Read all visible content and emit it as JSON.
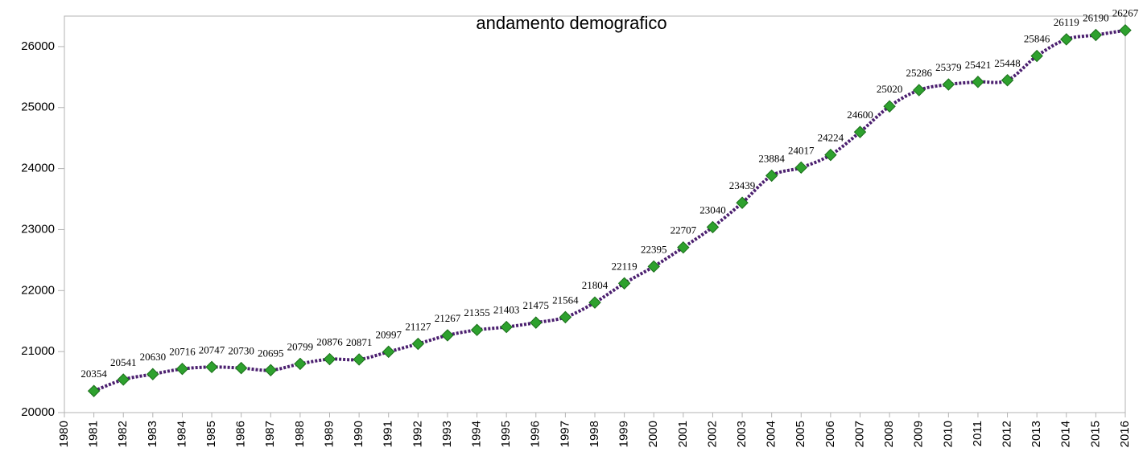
{
  "chart_data": {
    "type": "line",
    "title": "andamento demografico",
    "x": [
      1981,
      1982,
      1983,
      1984,
      1985,
      1986,
      1987,
      1988,
      1989,
      1990,
      1991,
      1992,
      1993,
      1994,
      1995,
      1996,
      1997,
      1998,
      1999,
      2000,
      2001,
      2002,
      2003,
      2004,
      2005,
      2006,
      2007,
      2008,
      2009,
      2010,
      2011,
      2012,
      2013,
      2014,
      2015,
      2016
    ],
    "series": [
      {
        "name": "andamento demografico",
        "color": "#4b1f6f",
        "marker_color": "#2ea12e",
        "values": [
          20354,
          20541,
          20630,
          20716,
          20747,
          20730,
          20695,
          20799,
          20876,
          20871,
          20997,
          21127,
          21267,
          21355,
          21403,
          21475,
          21564,
          21804,
          22119,
          22395,
          22707,
          23040,
          23439,
          23884,
          24017,
          24224,
          24600,
          25020,
          25286,
          25379,
          25421,
          25448,
          25846,
          26119,
          26190,
          26267
        ]
      }
    ],
    "xlim": [
      1980,
      2016
    ],
    "xticks": [
      1980,
      1981,
      1982,
      1983,
      1984,
      1985,
      1986,
      1987,
      1988,
      1989,
      1990,
      1991,
      1992,
      1993,
      1994,
      1995,
      1996,
      1997,
      1998,
      1999,
      2000,
      2001,
      2002,
      2003,
      2004,
      2005,
      2006,
      2007,
      2008,
      2009,
      2010,
      2011,
      2012,
      2013,
      2014,
      2015,
      2016
    ],
    "ylim": [
      20000,
      26500
    ],
    "yticks": [
      20000,
      21000,
      22000,
      23000,
      24000,
      25000,
      26000
    ],
    "smooth": true
  }
}
